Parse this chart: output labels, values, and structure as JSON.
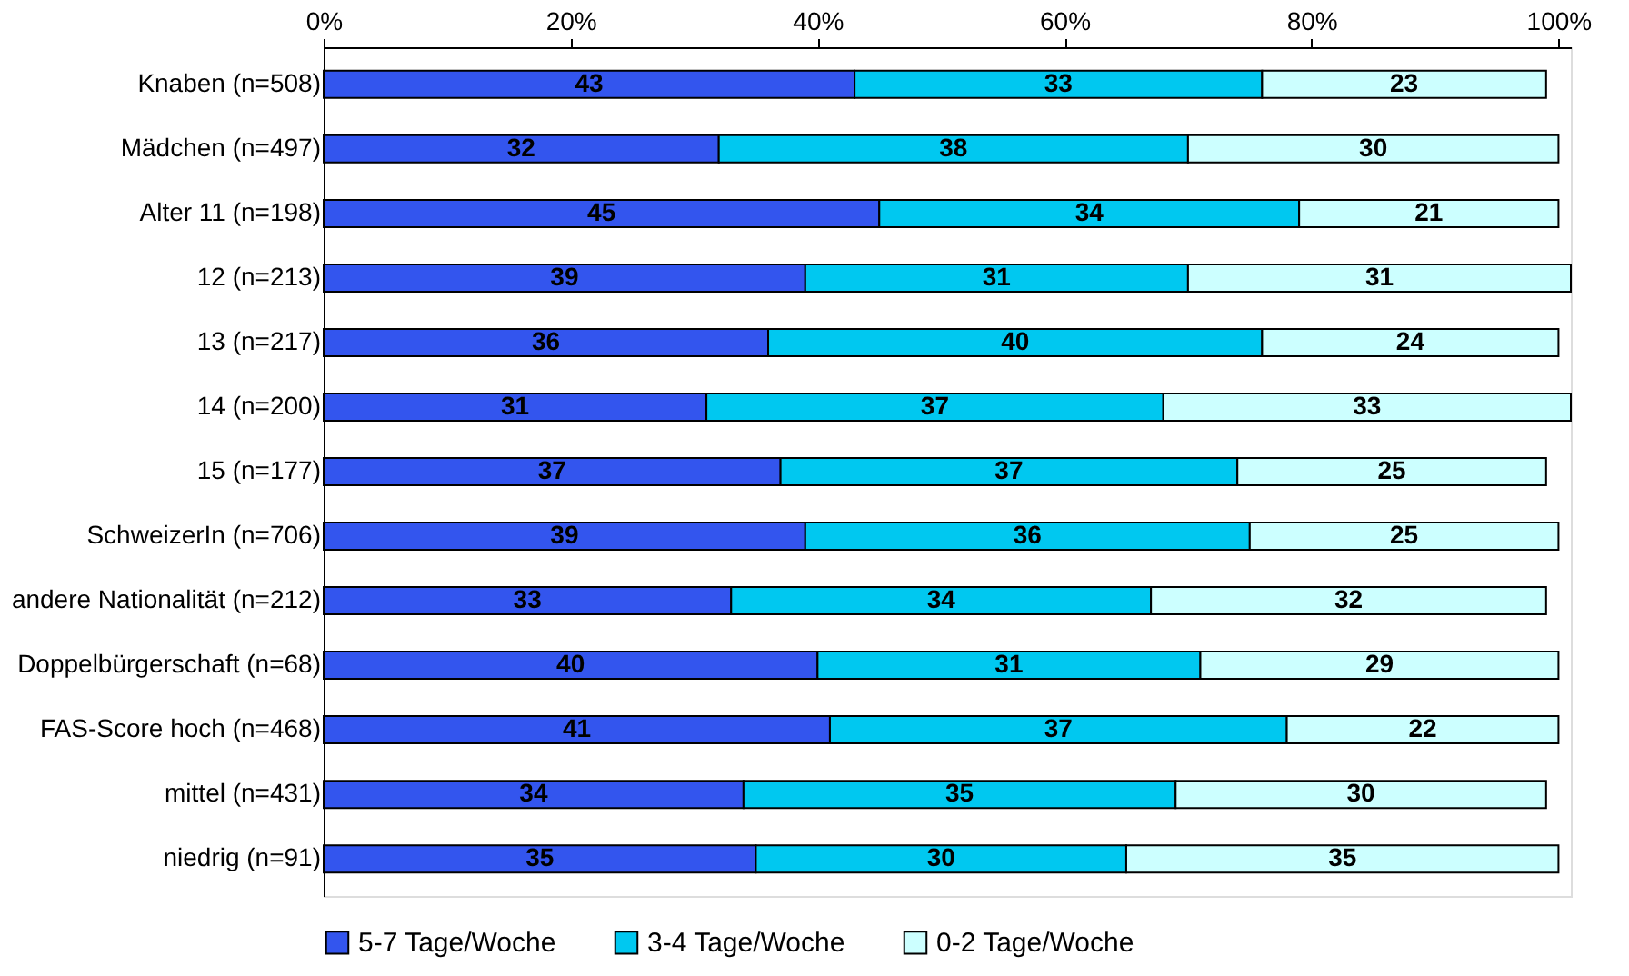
{
  "chart_data": {
    "type": "bar",
    "orientation": "horizontal",
    "stacked": true,
    "data_labels": true,
    "legend": "bottom",
    "grid": false,
    "categories": [
      "Knaben (n=508)",
      "Mädchen (n=497)",
      "Alter 11 (n=198)",
      "12 (n=213)",
      "13 (n=217)",
      "14 (n=200)",
      "15 (n=177)",
      "SchweizerIn (n=706)",
      "andere Nationalität (n=212)",
      "Doppelbürgerschaft (n=68)",
      "FAS-Score hoch (n=468)",
      "mittel (n=431)",
      "niedrig (n=91)"
    ],
    "series": [
      {
        "name": "5-7 Tage/Woche",
        "color": "#3355ee",
        "values": [
          43,
          32,
          45,
          39,
          36,
          31,
          37,
          39,
          33,
          40,
          41,
          34,
          35
        ]
      },
      {
        "name": "3-4 Tage/Woche",
        "color": "#00c8f0",
        "values": [
          33,
          38,
          34,
          31,
          40,
          37,
          37,
          36,
          34,
          31,
          37,
          35,
          30
        ]
      },
      {
        "name": "0-2 Tage/Woche",
        "color": "#ccffff",
        "values": [
          23,
          30,
          21,
          31,
          24,
          33,
          25,
          25,
          32,
          29,
          22,
          30,
          35
        ]
      }
    ],
    "xlim": [
      0,
      101
    ],
    "xticks": [
      {
        "value": 0,
        "label": "0%"
      },
      {
        "value": 20,
        "label": "20%"
      },
      {
        "value": 40,
        "label": "40%"
      },
      {
        "value": 60,
        "label": "60%"
      },
      {
        "value": 80,
        "label": "80%"
      },
      {
        "value": 100,
        "label": "100%"
      }
    ]
  }
}
